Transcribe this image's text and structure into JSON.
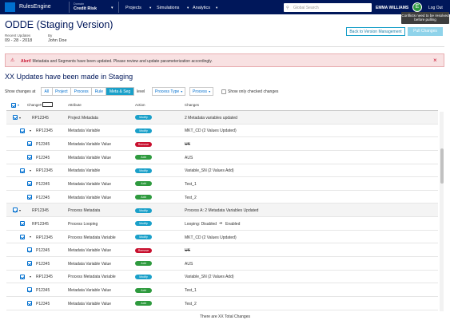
{
  "nav": {
    "brand": "RulesEngine",
    "domain_label": "Domain",
    "domain": "Credit Risk",
    "menu": [
      "Projects",
      "Simulations",
      "Analytics"
    ],
    "search_placeholder": "Global Search",
    "user": "EMMA WILLIAMS",
    "avatar": "E",
    "logout": "Log Out",
    "tooltip": "Conflicts need to be resolved before pulling"
  },
  "header": {
    "title": "ODDE (Staging Version)",
    "recent_label": "Recent Updates",
    "recent_date": "09 - 28 - 2018",
    "by_label": "By",
    "by": "John Doe",
    "buttons": [
      "Back to Version Management",
      "Pull Changes"
    ]
  },
  "alert": {
    "label": "Alert!",
    "message": "Metadata and Segments have been updated.  Please review and update parameterization accordingly."
  },
  "section_title": "XX Updates have been made in Staging",
  "filters": {
    "prefix": "Show changes at",
    "levels": [
      "All",
      "Project",
      "Process",
      "Rule",
      "Meta & Seg"
    ],
    "selected_level": 4,
    "suffix": "level",
    "dropdowns": [
      "Process Type",
      "Process"
    ],
    "checkbox_label": "Show only checked changes"
  },
  "table": {
    "columns": [
      "Change#",
      "Attribute",
      "Action",
      "Changes"
    ],
    "rows": [
      {
        "level": 0,
        "expandable": true,
        "id": "RP12345",
        "attribute": "Project Metadata",
        "action": "Modify",
        "action_color": "#1aa0c9",
        "change": "2 Metadata variables updated"
      },
      {
        "level": 1,
        "expandable": true,
        "id": "RP12345",
        "attribute": "Metadata Variable",
        "action": "Modify",
        "action_color": "#1aa0c9",
        "change": "MKT_CD (2 Values Updated)"
      },
      {
        "level": 2,
        "expandable": false,
        "id": "P12345",
        "attribute": "Metadata Variable Value",
        "action": "Remove",
        "action_color": "#c8102e",
        "change": "UK",
        "strike": true
      },
      {
        "level": 2,
        "expandable": false,
        "id": "P12345",
        "attribute": "Metadata Variable Value",
        "action": "Add",
        "action_color": "#2e9a3e",
        "change": "AUS"
      },
      {
        "level": 1,
        "expandable": true,
        "id": "RP12345",
        "attribute": "Metadata Variable",
        "action": "Modify",
        "action_color": "#1aa0c9",
        "change": "Variable_SN (2 Values Add)"
      },
      {
        "level": 2,
        "expandable": false,
        "id": "P12345",
        "attribute": "Metadata Variable Value",
        "action": "Add",
        "action_color": "#2e9a3e",
        "change": "Test_1"
      },
      {
        "level": 2,
        "expandable": false,
        "id": "P12345",
        "attribute": "Metadata Variable Value",
        "action": "Add",
        "action_color": "#2e9a3e",
        "change": "Test_2"
      },
      {
        "level": 0,
        "expandable": true,
        "id": "RP12345",
        "attribute": "Process Metadata",
        "action": "Modify",
        "action_color": "#1aa0c9",
        "change": "Process A: 2 Metadata Variables Updated"
      },
      {
        "level": 1,
        "expandable": false,
        "id": "RP12345",
        "attribute": "Process Looping",
        "action": "Modify",
        "action_color": "#1aa0c9",
        "change": "Looping: Disabled",
        "change_to": "Enabled"
      },
      {
        "level": 1,
        "expandable": true,
        "id": "RP12345",
        "attribute": "Process Metadata Variable",
        "action": "Modify",
        "action_color": "#1aa0c9",
        "change": "MKT_CD (2 Values Updated)"
      },
      {
        "level": 2,
        "expandable": false,
        "id": "P12345",
        "attribute": "Metadata Variable Value",
        "action": "Remove",
        "action_color": "#c8102e",
        "change": "UK",
        "strike": true
      },
      {
        "level": 2,
        "expandable": false,
        "id": "P12345",
        "attribute": "Metadata Variable Value",
        "action": "Add",
        "action_color": "#2e9a3e",
        "change": "AUS"
      },
      {
        "level": 1,
        "expandable": true,
        "id": "RP12345",
        "attribute": "Process Metadata Variable",
        "action": "Modify",
        "action_color": "#1aa0c9",
        "change": "Variable_SN (2 Values Add)"
      },
      {
        "level": 2,
        "expandable": false,
        "id": "P12345",
        "attribute": "Metadata Variable Value",
        "action": "Add",
        "action_color": "#2e9a3e",
        "change": "Test_1"
      },
      {
        "level": 2,
        "expandable": false,
        "id": "P12345",
        "attribute": "Metadata Variable Value",
        "action": "Add",
        "action_color": "#2e9a3e",
        "change": "Test_2"
      }
    ],
    "footer": "There are XX Total Changes"
  }
}
